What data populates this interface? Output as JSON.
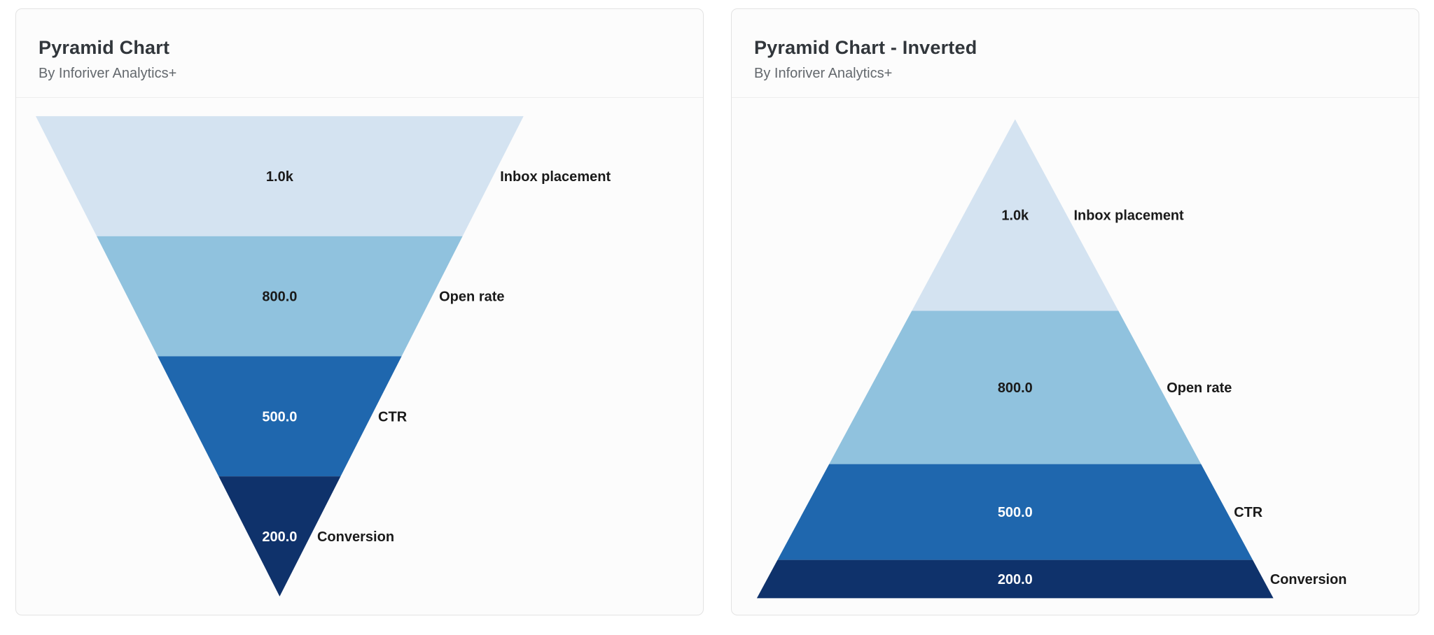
{
  "page": {
    "background_color": "#ffffff",
    "card_background_color": "#fcfcfc",
    "card_border_color": "#e3e3e3"
  },
  "chart_data": [
    {
      "title": "Pyramid Chart",
      "subtitle": "By Inforiver Analytics+",
      "type": "pyramid",
      "orientation": "point-down",
      "slice_sizing": "equal-height",
      "categories": [
        "Inbox placement",
        "Open rate",
        "CTR",
        "Conversion"
      ],
      "values": [
        1000,
        800,
        500,
        200
      ],
      "value_labels": [
        "1.0k",
        "800.0",
        "500.0",
        "200.0"
      ],
      "colors": [
        "#d4e3f1",
        "#90c2de",
        "#1f67ae",
        "#0f326b"
      ],
      "value_label_colors": [
        "#1a1a1a",
        "#1a1a1a",
        "#ffffff",
        "#ffffff"
      ],
      "category_label_color": "#1a1a1a",
      "value_label_position": "inside-center",
      "category_label_position": "outside-right",
      "legend_position": "none",
      "grid": false
    },
    {
      "title": "Pyramid Chart - Inverted",
      "subtitle": "By Inforiver Analytics+",
      "type": "pyramid",
      "orientation": "point-up",
      "slice_sizing": "proportional-to-value",
      "categories": [
        "Inbox placement",
        "Open rate",
        "CTR",
        "Conversion"
      ],
      "values": [
        1000,
        800,
        500,
        200
      ],
      "value_labels": [
        "1.0k",
        "800.0",
        "500.0",
        "200.0"
      ],
      "colors": [
        "#d4e3f1",
        "#90c2de",
        "#1f67ae",
        "#0f326b"
      ],
      "value_label_colors": [
        "#1a1a1a",
        "#1a1a1a",
        "#ffffff",
        "#ffffff"
      ],
      "category_label_color": "#1a1a1a",
      "value_label_position": "inside-center",
      "category_label_position": "outside-right",
      "legend_position": "none",
      "grid": false
    }
  ]
}
